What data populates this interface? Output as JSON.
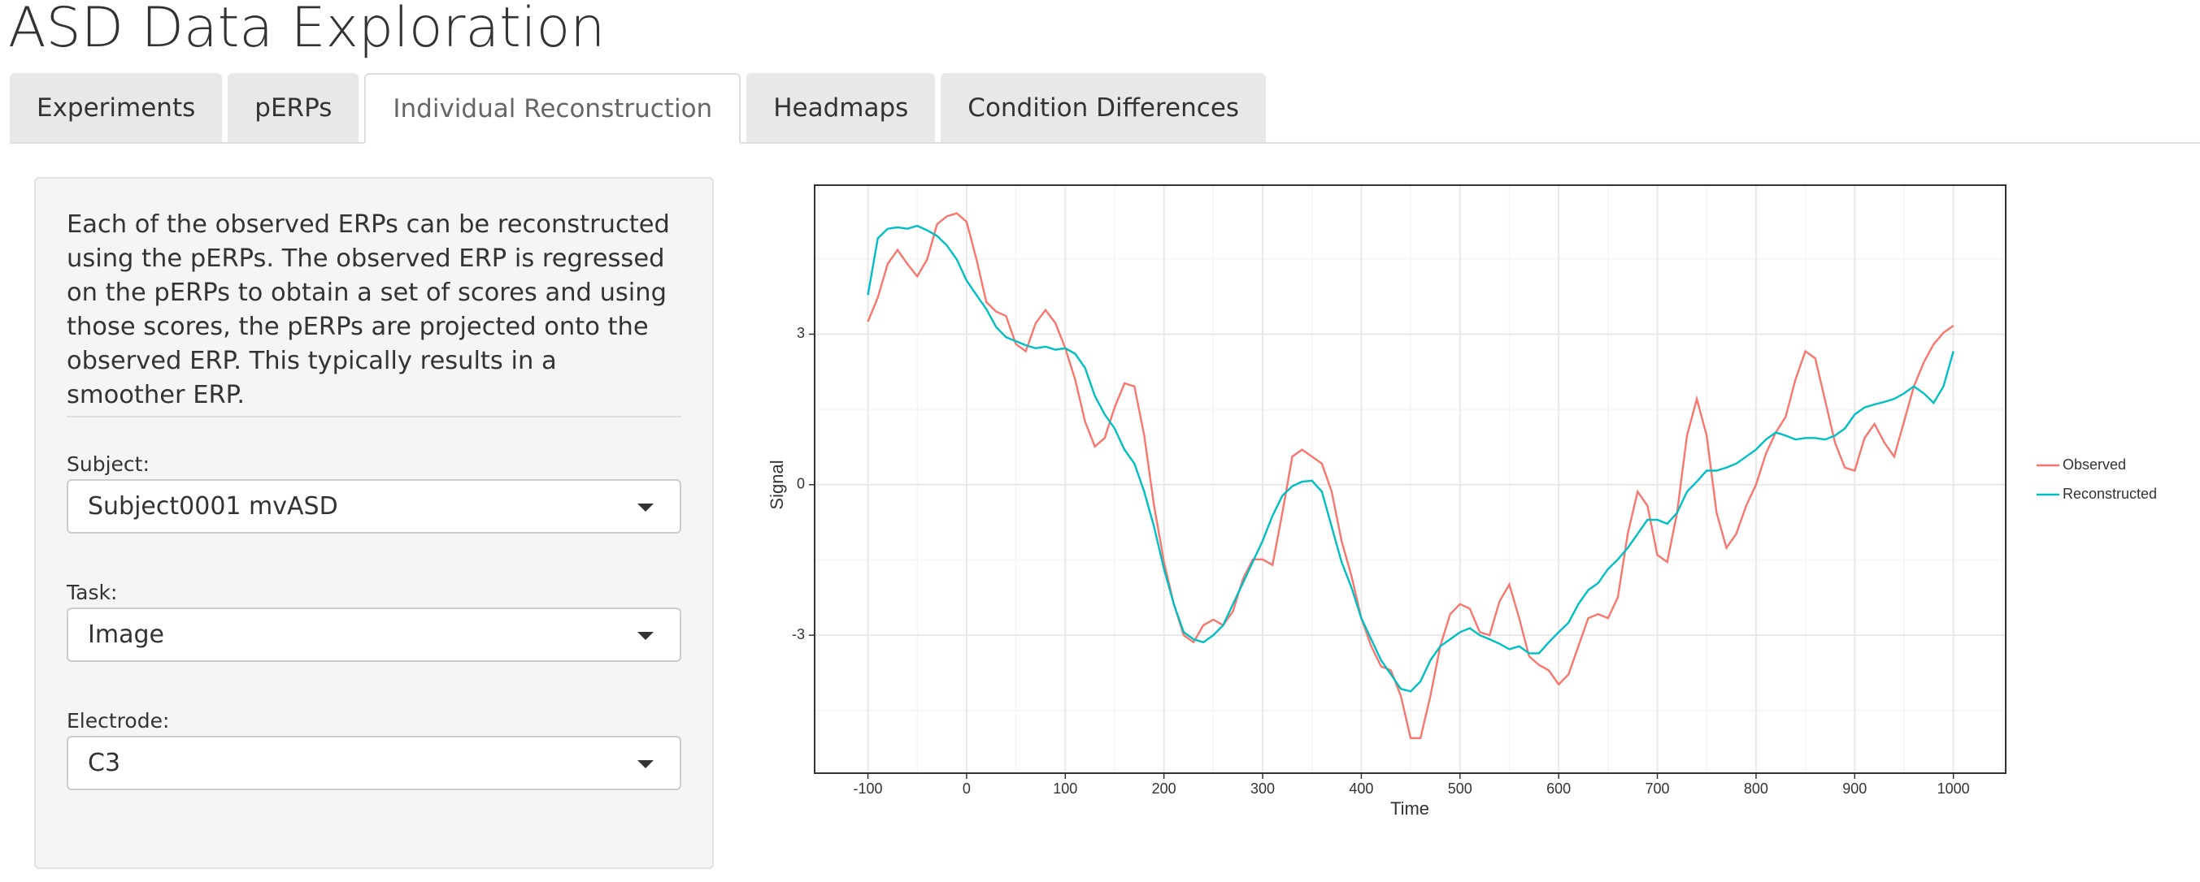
{
  "header": {
    "title": "ASD Data Exploration"
  },
  "tabs": [
    "Experiments",
    "pERPs",
    "Individual Reconstruction",
    "Headmaps",
    "Condition Differences"
  ],
  "active_tab": 2,
  "sidebar": {
    "description": "Each of the observed ERPs can be reconstructed using the pERPs. The observed ERP is regressed on the pERPs to obtain a set of scores and using those scores, the pERPs are projected onto the observed ERP. This typically results in a smoother ERP.",
    "inputs": [
      {
        "label": "Subject:",
        "value": "Subject0001 mvASD"
      },
      {
        "label": "Task:",
        "value": "Image"
      },
      {
        "label": "Electrode:",
        "value": "C3"
      }
    ]
  },
  "chart_data": {
    "type": "line",
    "x_label": "Time",
    "y_label": "Signal",
    "x": [
      -100,
      -90,
      -80,
      -70,
      -60,
      -50,
      -40,
      -30,
      -20,
      -10,
      0,
      10,
      20,
      30,
      40,
      50,
      60,
      70,
      80,
      90,
      100,
      110,
      120,
      130,
      140,
      150,
      160,
      170,
      180,
      190,
      200,
      210,
      220,
      230,
      240,
      250,
      260,
      270,
      280,
      290,
      300,
      310,
      320,
      330,
      340,
      350,
      360,
      370,
      380,
      390,
      400,
      410,
      420,
      430,
      440,
      450,
      460,
      470,
      480,
      490,
      500,
      510,
      520,
      530,
      540,
      550,
      560,
      570,
      580,
      590,
      600,
      610,
      620,
      630,
      640,
      650,
      660,
      670,
      680,
      690,
      700,
      710,
      720,
      730,
      740,
      750,
      760,
      770,
      780,
      790,
      800,
      810,
      820,
      830,
      840,
      850,
      860,
      870,
      880,
      890,
      900,
      910,
      920,
      930,
      940,
      950,
      960,
      970,
      980,
      990,
      1000
    ],
    "series": [
      {
        "name": "Observed",
        "color": "#f8766d",
        "values": [
          3.25,
          3.73,
          4.4,
          4.68,
          4.4,
          4.15,
          4.49,
          5.19,
          5.35,
          5.41,
          5.24,
          4.49,
          3.64,
          3.45,
          3.36,
          2.8,
          2.66,
          3.22,
          3.48,
          3.22,
          2.72,
          2.1,
          1.26,
          0.76,
          0.93,
          1.54,
          2.02,
          1.96,
          0.98,
          -0.42,
          -1.54,
          -2.38,
          -3.0,
          -3.14,
          -2.8,
          -2.69,
          -2.8,
          -2.52,
          -1.88,
          -1.49,
          -1.49,
          -1.6,
          -0.56,
          0.56,
          0.7,
          0.56,
          0.42,
          -0.14,
          -1.12,
          -1.82,
          -2.66,
          -3.22,
          -3.62,
          -3.7,
          -4.21,
          -5.05,
          -5.05,
          -4.21,
          -3.22,
          -2.58,
          -2.38,
          -2.47,
          -2.94,
          -3.0,
          -2.33,
          -1.99,
          -2.66,
          -3.42,
          -3.59,
          -3.7,
          -3.98,
          -3.78,
          -3.22,
          -2.66,
          -2.58,
          -2.66,
          -2.24,
          -0.98,
          -0.14,
          -0.42,
          -1.4,
          -1.54,
          -0.56,
          0.98,
          1.71,
          0.98,
          -0.56,
          -1.26,
          -0.98,
          -0.42,
          0,
          0.62,
          1.04,
          1.35,
          2.1,
          2.66,
          2.52,
          1.68,
          0.84,
          0.34,
          0.28,
          0.93,
          1.21,
          0.84,
          0.56,
          1.26,
          1.96,
          2.44,
          2.8,
          3.03,
          3.17
        ]
      },
      {
        "name": "Reconstructed",
        "color": "#00bfc4",
        "values": [
          3.78,
          4.91,
          5.1,
          5.13,
          5.1,
          5.16,
          5.07,
          4.96,
          4.77,
          4.49,
          4.07,
          3.78,
          3.5,
          3.14,
          2.94,
          2.86,
          2.78,
          2.72,
          2.75,
          2.69,
          2.72,
          2.61,
          2.33,
          1.77,
          1.4,
          1.12,
          0.7,
          0.42,
          -0.14,
          -0.84,
          -1.68,
          -2.38,
          -2.94,
          -3.08,
          -3.14,
          -3.0,
          -2.8,
          -2.38,
          -1.96,
          -1.54,
          -1.12,
          -0.62,
          -0.22,
          -0.03,
          0.06,
          0.08,
          -0.14,
          -0.84,
          -1.54,
          -2.05,
          -2.66,
          -3.08,
          -3.5,
          -3.78,
          -4.07,
          -4.12,
          -3.92,
          -3.5,
          -3.22,
          -3.08,
          -2.94,
          -2.86,
          -3.0,
          -3.08,
          -3.17,
          -3.28,
          -3.22,
          -3.36,
          -3.36,
          -3.14,
          -2.94,
          -2.75,
          -2.38,
          -2.1,
          -1.96,
          -1.68,
          -1.49,
          -1.26,
          -0.98,
          -0.7,
          -0.7,
          -0.78,
          -0.56,
          -0.14,
          0.06,
          0.28,
          0.28,
          0.34,
          0.42,
          0.56,
          0.7,
          0.9,
          1.04,
          0.98,
          0.9,
          0.93,
          0.93,
          0.9,
          0.98,
          1.12,
          1.4,
          1.54,
          1.6,
          1.65,
          1.71,
          1.82,
          1.96,
          1.82,
          1.63,
          1.96,
          2.66
        ]
      }
    ],
    "xlim": [
      -154,
      1053
    ],
    "ylim": [
      -5.75,
      5.97
    ],
    "xticks": [
      -100,
      0,
      100,
      200,
      300,
      400,
      500,
      600,
      700,
      800,
      900,
      1000
    ],
    "yticks": [
      -3,
      0,
      3
    ],
    "x_minor_ticks": [
      -150,
      -50,
      50,
      150,
      250,
      350,
      450,
      550,
      650,
      750,
      850,
      950,
      1050
    ],
    "y_minor_ticks": [
      -4.5,
      -1.5,
      1.5,
      4.5
    ],
    "grid": true,
    "legend": "right"
  }
}
